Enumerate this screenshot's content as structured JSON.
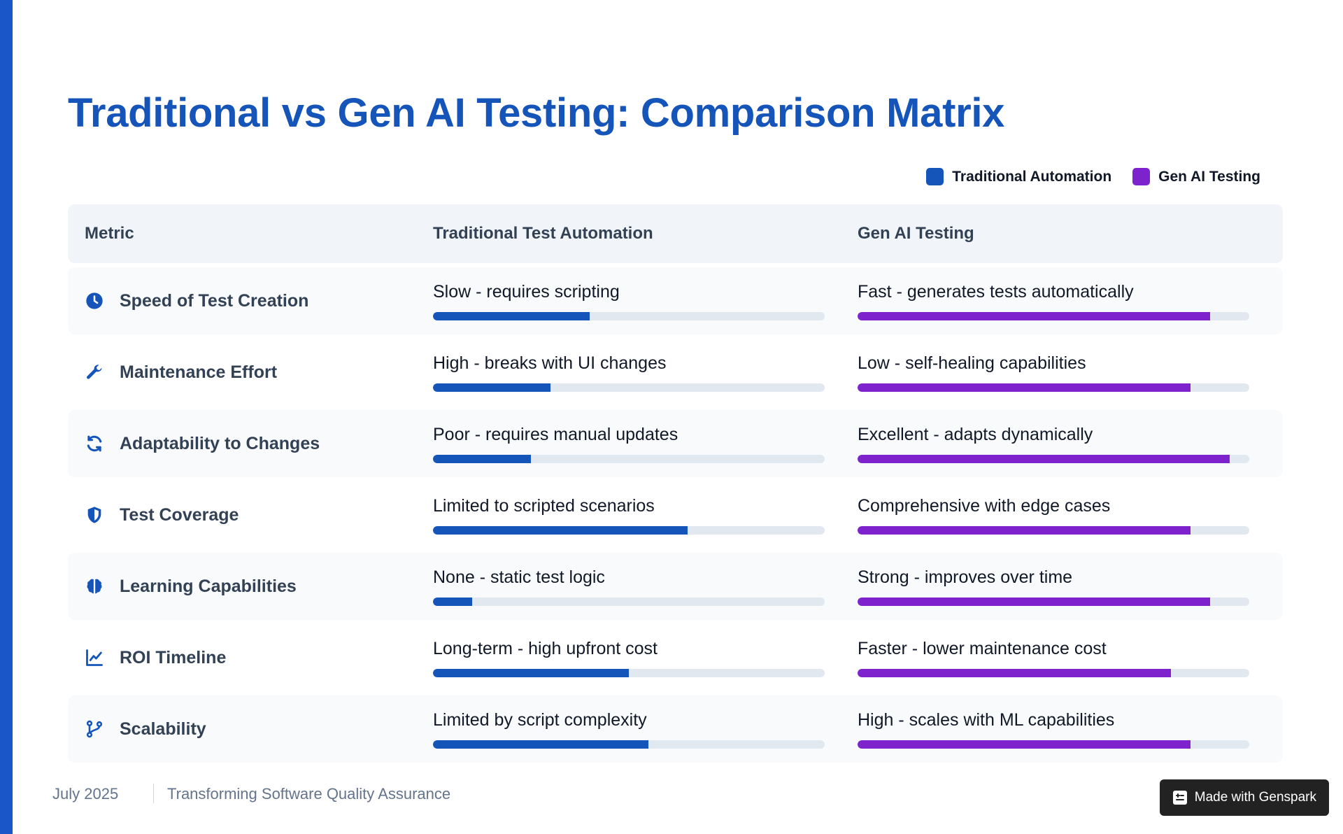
{
  "title": "Traditional vs Gen AI Testing: Comparison Matrix",
  "colors": {
    "accent": "#1554b8",
    "traditional": "#1554b8",
    "gen_ai": "#7e22ce",
    "track": "#e2e8f0"
  },
  "legend": [
    {
      "label": "Traditional Automation",
      "color": "#1554b8"
    },
    {
      "label": "Gen AI Testing",
      "color": "#7e22ce"
    }
  ],
  "table": {
    "headers": {
      "metric": "Metric",
      "traditional": "Traditional Test Automation",
      "gen_ai": "Gen AI Testing"
    },
    "rows": [
      {
        "metric": "Speed of Test Creation",
        "icon": "clock-icon",
        "traditional": "Slow - requires scripting",
        "traditional_level": 0.4,
        "gen_ai": "Fast - generates tests automatically",
        "gen_ai_level": 0.9
      },
      {
        "metric": "Maintenance Effort",
        "icon": "wrench-icon",
        "traditional": "High - breaks with UI changes",
        "traditional_level": 0.3,
        "gen_ai": "Low - self-healing capabilities",
        "gen_ai_level": 0.85
      },
      {
        "metric": "Adaptability to Changes",
        "icon": "sync-icon",
        "traditional": "Poor - requires manual updates",
        "traditional_level": 0.25,
        "gen_ai": "Excellent - adapts dynamically",
        "gen_ai_level": 0.95
      },
      {
        "metric": "Test Coverage",
        "icon": "shield-icon",
        "traditional": "Limited to scripted scenarios",
        "traditional_level": 0.65,
        "gen_ai": "Comprehensive with edge cases",
        "gen_ai_level": 0.85
      },
      {
        "metric": "Learning Capabilities",
        "icon": "brain-icon",
        "traditional": "None - static test logic",
        "traditional_level": 0.1,
        "gen_ai": "Strong - improves over time",
        "gen_ai_level": 0.9
      },
      {
        "metric": "ROI Timeline",
        "icon": "chart-line-icon",
        "traditional": "Long-term - high upfront cost",
        "traditional_level": 0.5,
        "gen_ai": "Faster - lower maintenance cost",
        "gen_ai_level": 0.8
      },
      {
        "metric": "Scalability",
        "icon": "code-branch-icon",
        "traditional": "Limited by script complexity",
        "traditional_level": 0.55,
        "gen_ai": "High - scales with ML capabilities",
        "gen_ai_level": 0.85
      }
    ]
  },
  "footer": {
    "date": "July 2025",
    "subtitle": "Transforming Software Quality Assurance"
  },
  "badge": {
    "label": "Made with Genspark",
    "icon": "genspark-icon"
  }
}
